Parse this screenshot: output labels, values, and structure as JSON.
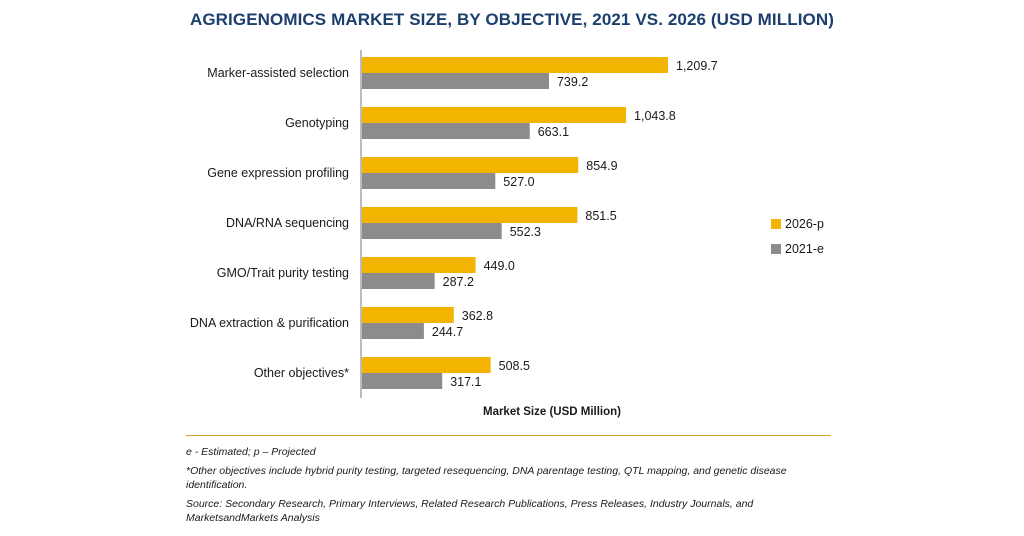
{
  "chart_data": {
    "type": "bar",
    "orientation": "horizontal",
    "title": "AGRIGENOMICS MARKET SIZE, BY OBJECTIVE, 2021 VS. 2026 (USD MILLION)",
    "xlabel": "Market Size (USD Million)",
    "ylabel": "",
    "categories": [
      "Marker-assisted selection",
      "Genotyping",
      "Gene expression profiling",
      "DNA/RNA sequencing",
      "GMO/Trait purity testing",
      "DNA extraction & purification",
      "Other objectives*"
    ],
    "series": [
      {
        "name": "2026-p",
        "color": "#f2b400",
        "values": [
          1209.7,
          1043.8,
          854.9,
          851.5,
          449.0,
          362.8,
          508.5
        ],
        "labels": [
          "1,209.7",
          "1,043.8",
          "854.9",
          "851.5",
          "449.0",
          "362.8",
          "508.5"
        ]
      },
      {
        "name": "2021-e",
        "color": "#8c8c8c",
        "values": [
          739.2,
          663.1,
          527.0,
          552.3,
          287.2,
          244.7,
          317.1
        ],
        "labels": [
          "739.2",
          "663.1",
          "527.0",
          "552.3",
          "287.2",
          "244.7",
          "317.1"
        ]
      }
    ],
    "xlim": [
      0,
      1400
    ],
    "grid": false,
    "legend_position": "right"
  },
  "notes": {
    "estimated": "e - Estimated; p – Projected",
    "other": "*Other objectives include hybrid purity testing, targeted resequencing, DNA parentage testing, QTL mapping, and genetic disease identification.",
    "source": "Source: Secondary Research, Primary Interviews, Related Research Publications, Press Releases, Industry Journals, and MarketsandMarkets Analysis"
  },
  "colors": {
    "title": "#1c3f6e",
    "divider": "#d1a622"
  }
}
